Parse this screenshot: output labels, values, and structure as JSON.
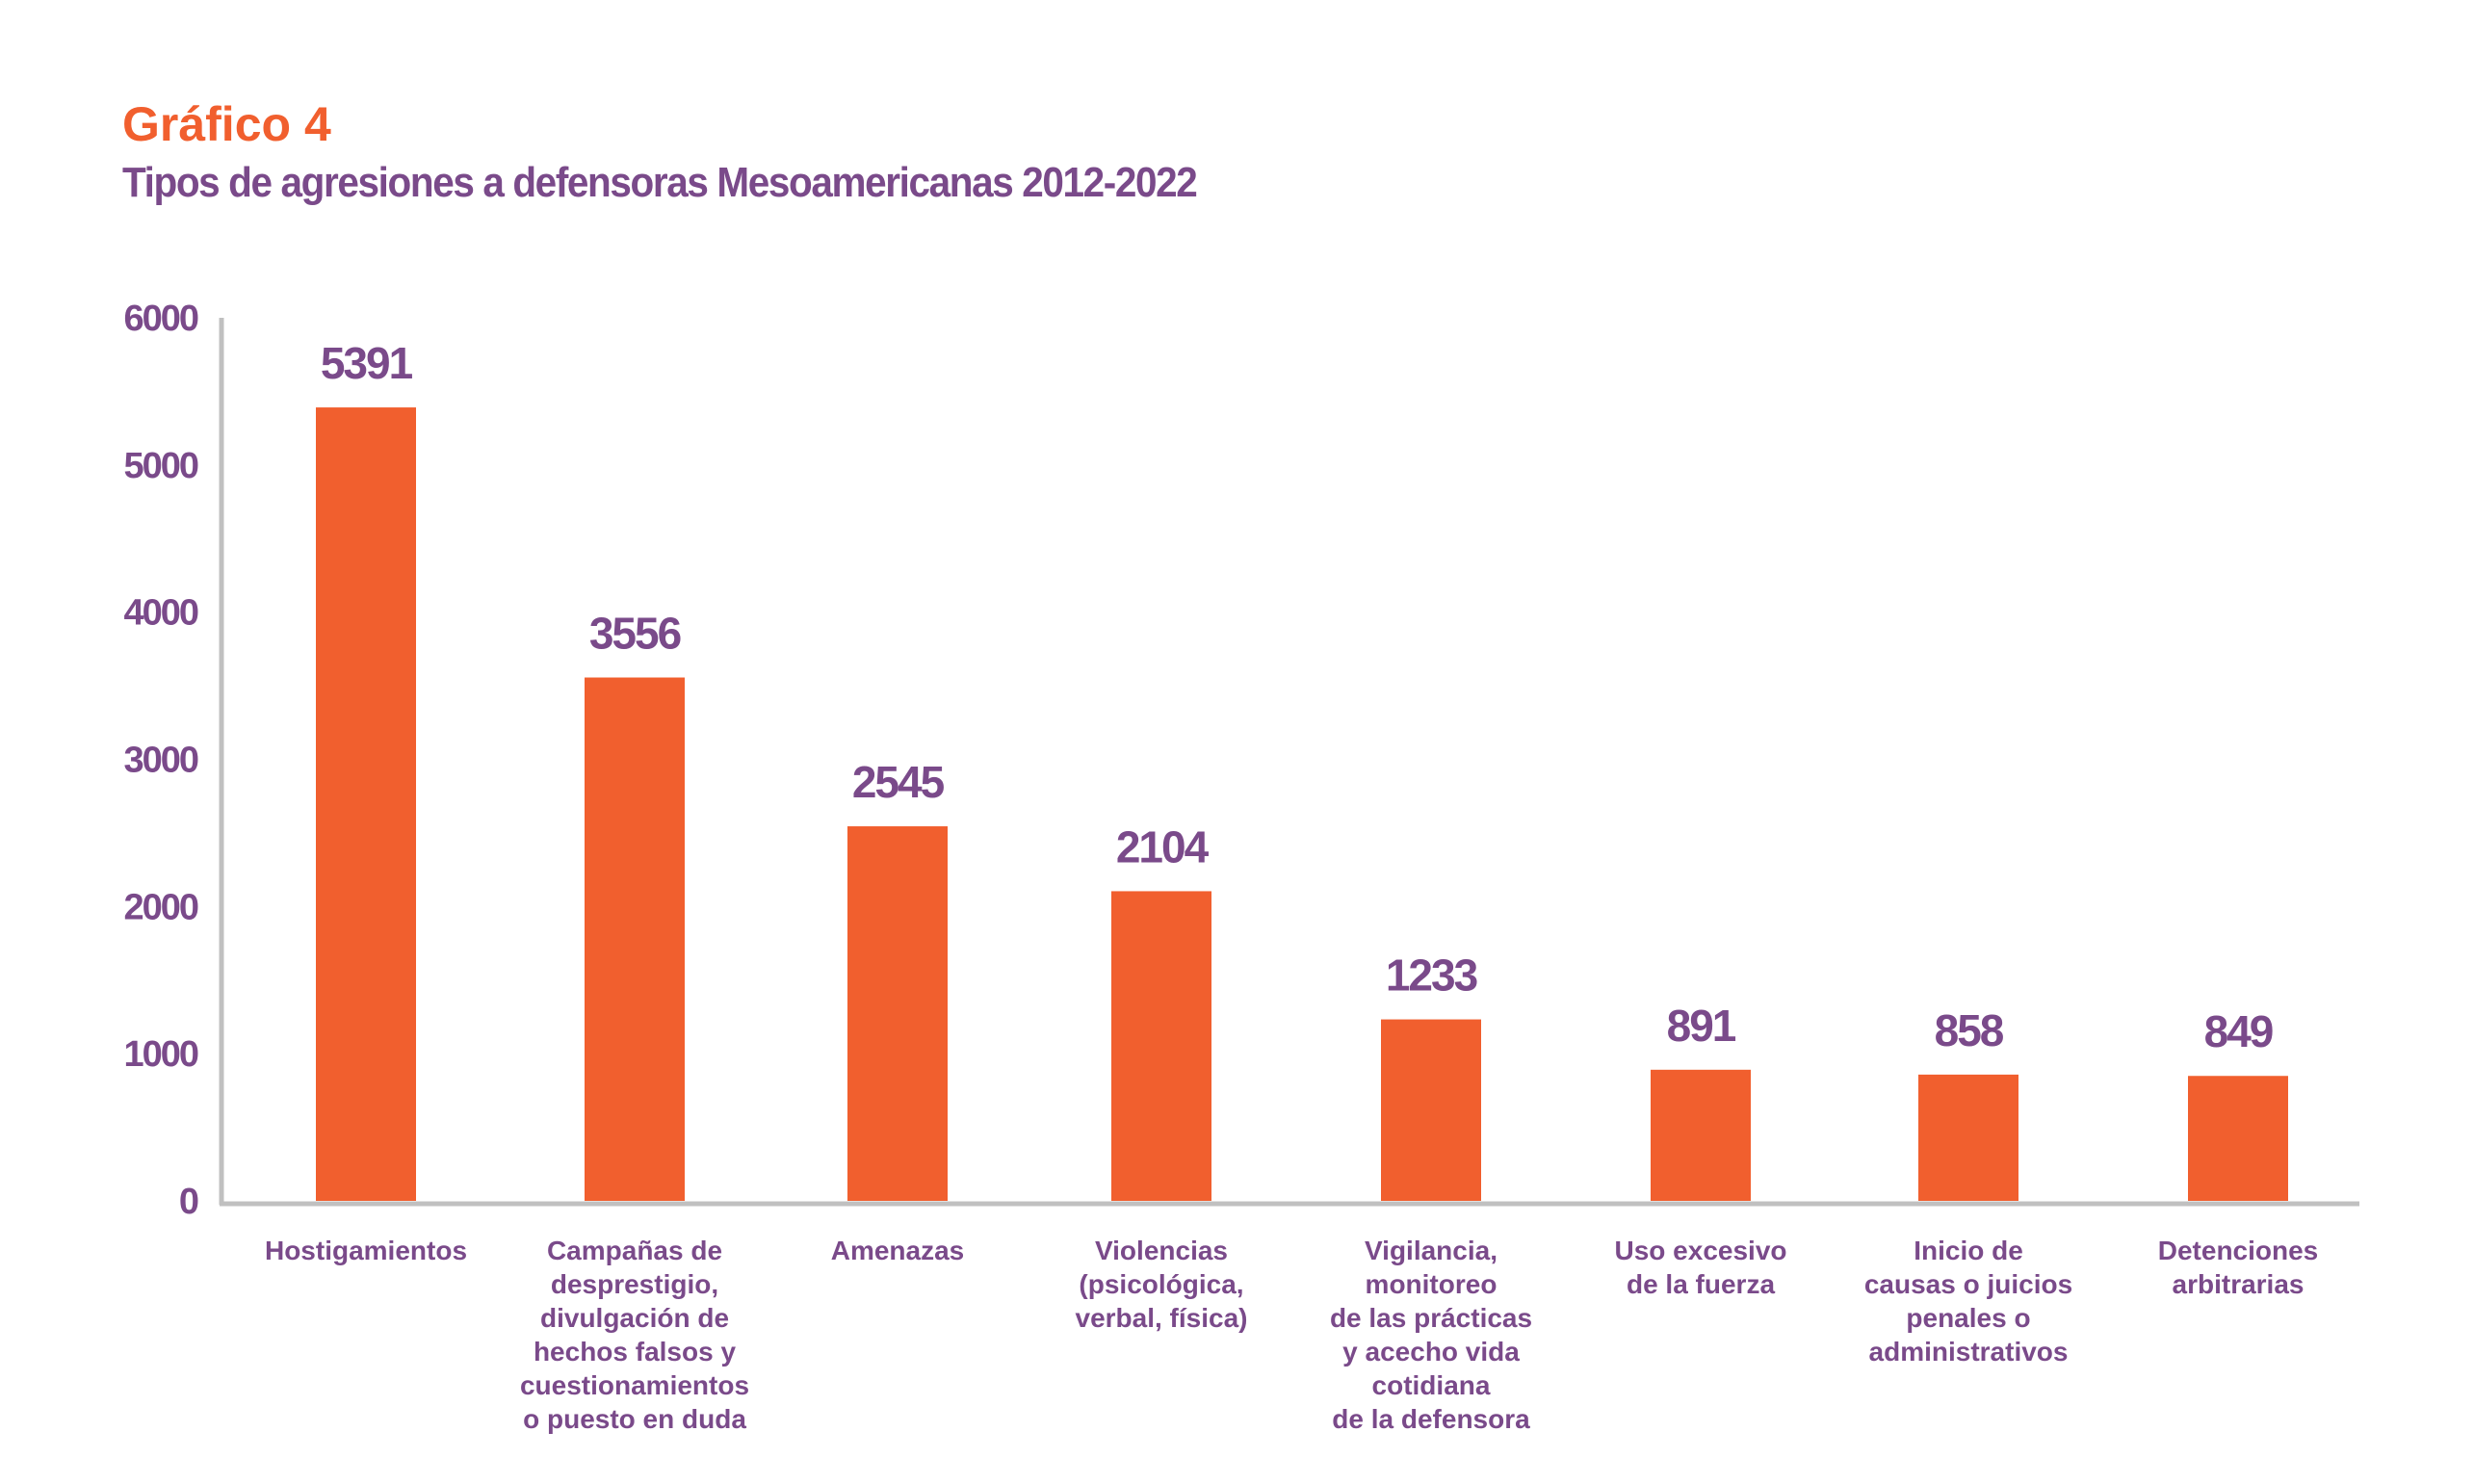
{
  "chart_data": {
    "type": "bar",
    "title": "Gráfico 4",
    "subtitle": "Tipos de agresiones a defensoras Mesoamericanas 2012-2022",
    "categories": [
      [
        "Hostigamientos"
      ],
      [
        "Campañas de",
        "desprestigio,",
        "divulgación de",
        "hechos falsos y",
        "cuestionamientos",
        "o puesto en duda"
      ],
      [
        "Amenazas"
      ],
      [
        "Violencias",
        "(psicológica,",
        "verbal, física)"
      ],
      [
        "Vigilancia,",
        "monitoreo",
        "de las prácticas",
        "y acecho vida",
        "cotidiana",
        "de la defensora"
      ],
      [
        "Uso excesivo",
        "de la fuerza"
      ],
      [
        "Inicio de",
        "causas o juicios",
        "penales o",
        "administrativos"
      ],
      [
        "Detenciones",
        "arbitrarias"
      ]
    ],
    "values": [
      5391,
      3556,
      2545,
      2104,
      1233,
      891,
      858,
      849
    ],
    "value_labels": [
      "5391",
      "3556",
      "2545",
      "2104",
      "1233",
      "891",
      "858",
      "849"
    ],
    "yticks": [
      "0",
      "1000",
      "2000",
      "3000",
      "4000",
      "5000",
      "6000"
    ],
    "ylim": [
      0,
      6000
    ],
    "xlabel": "",
    "ylabel": "",
    "grid": false,
    "colors": {
      "bar": "#F15F2E",
      "text": "#7A4A8A",
      "axis": "#C0C0C0"
    }
  }
}
